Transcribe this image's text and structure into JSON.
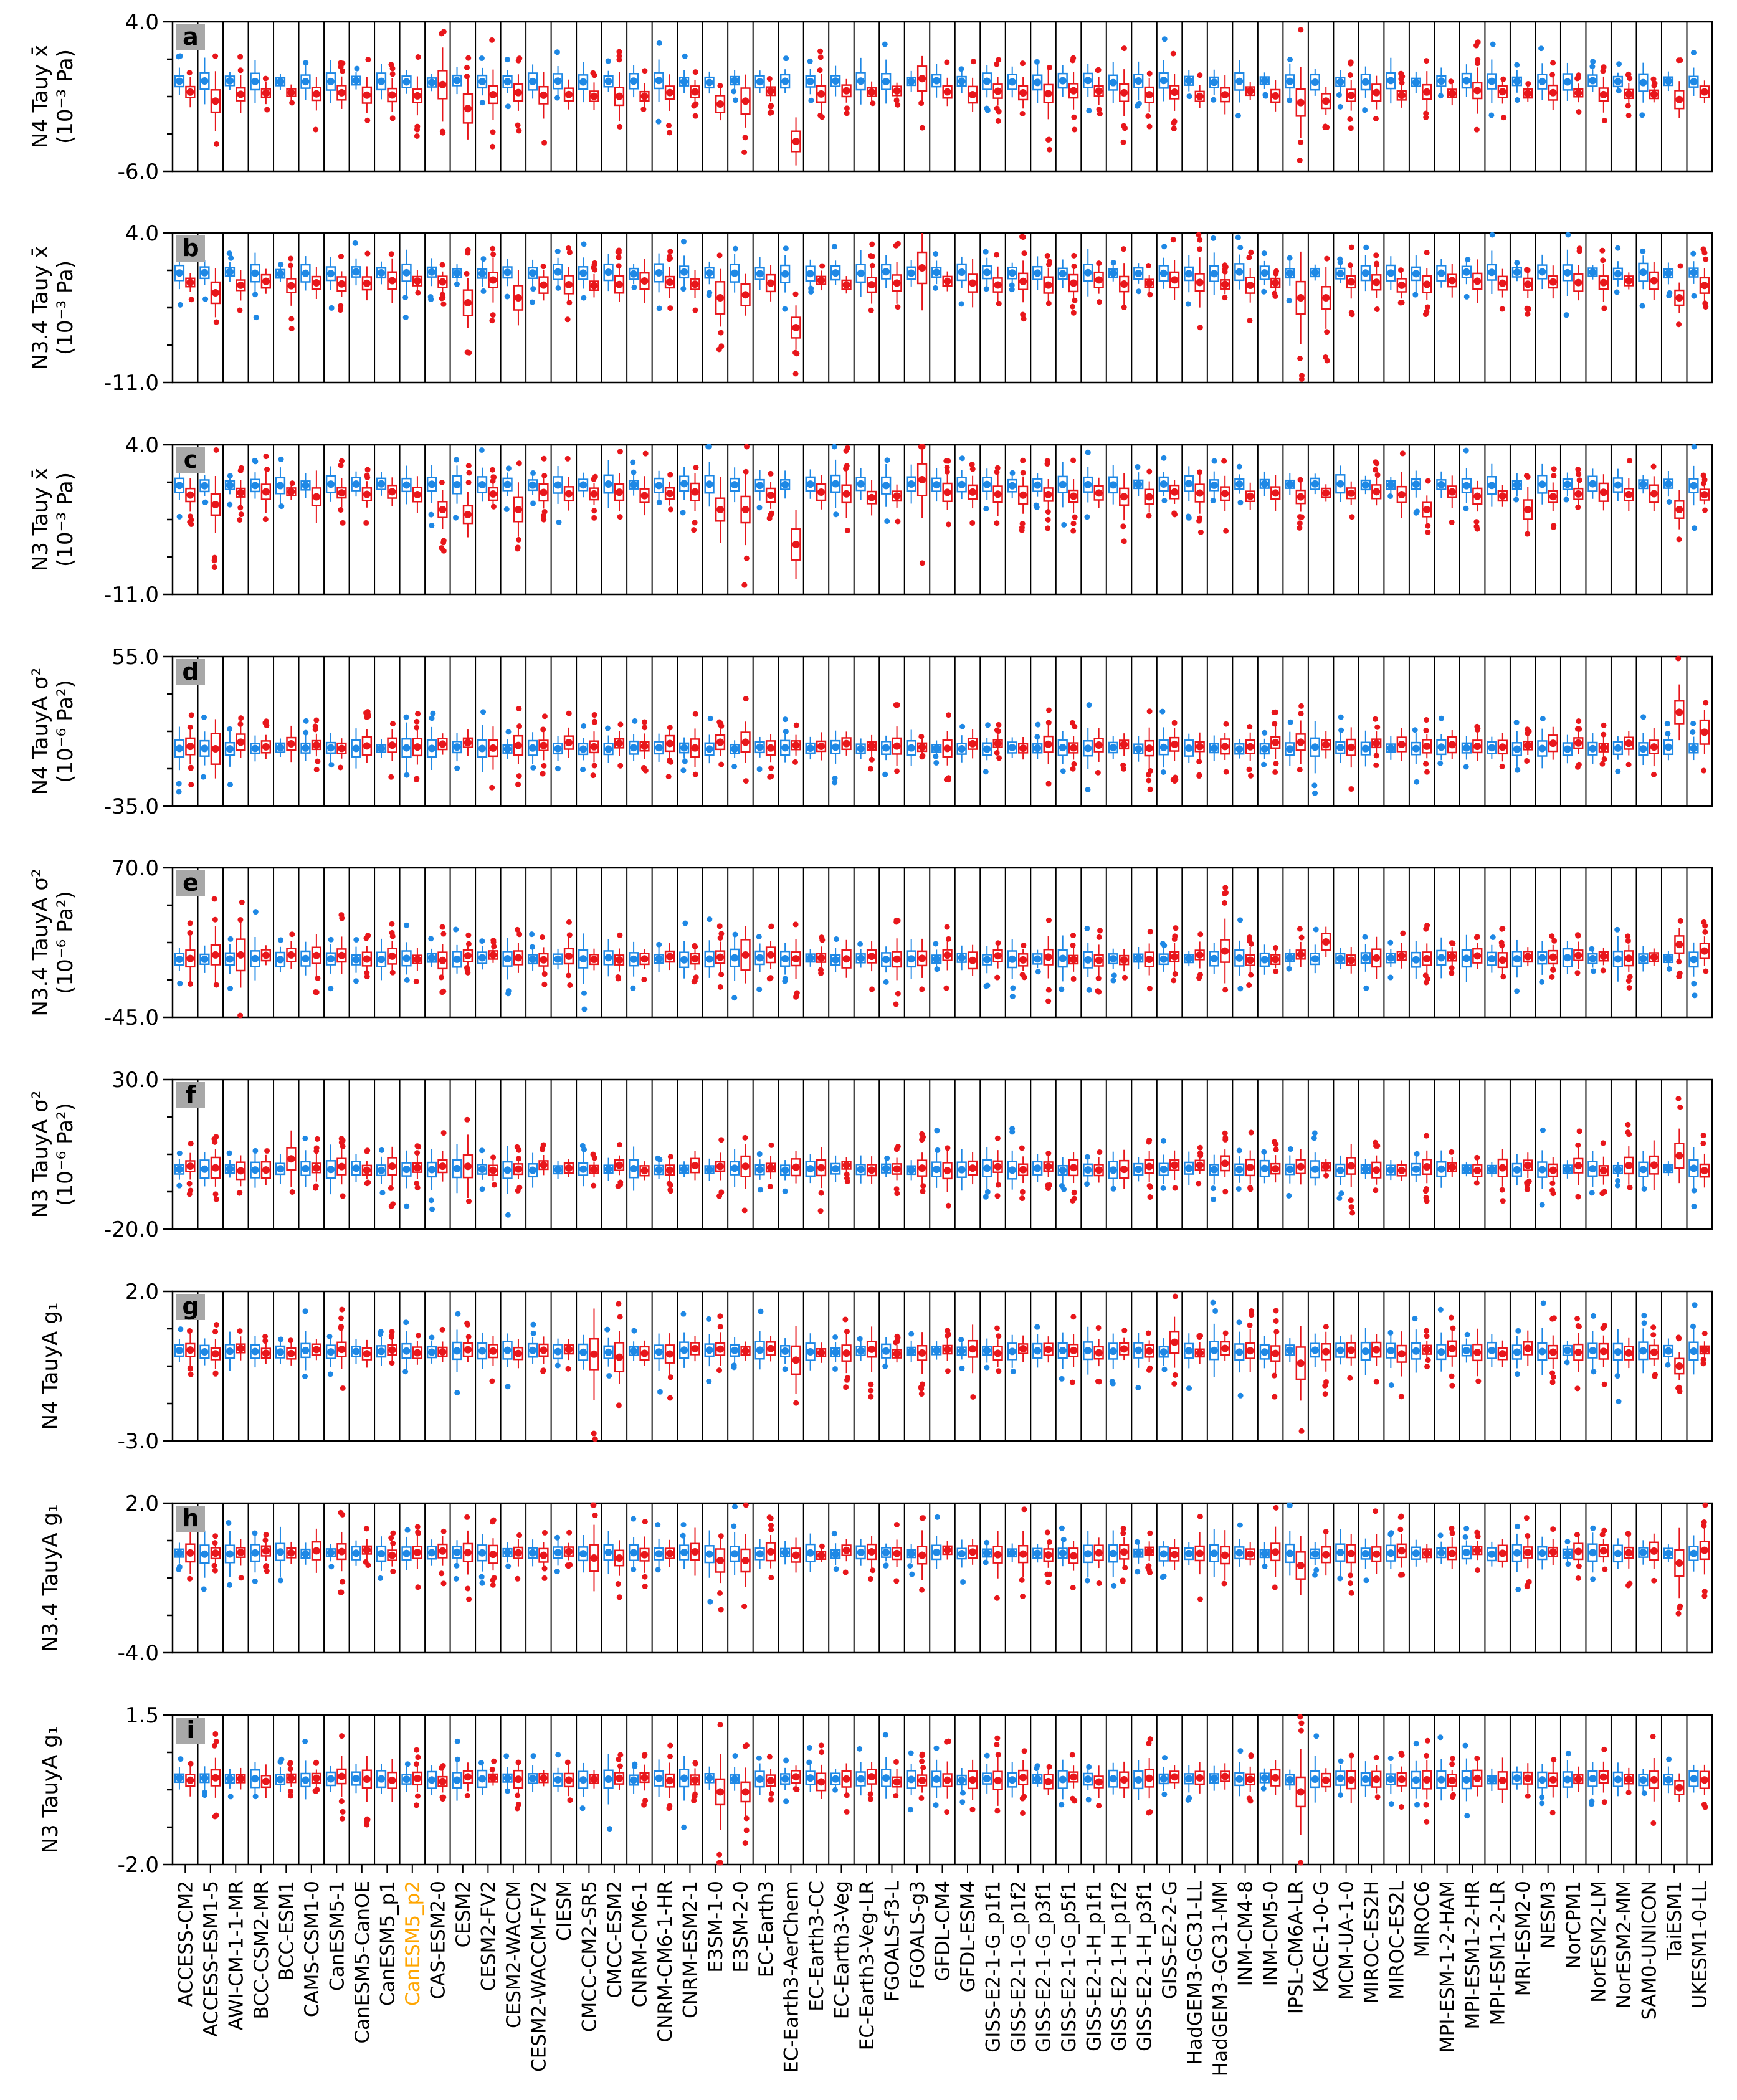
{
  "colors": {
    "blue": "#1e88e5",
    "red": "#e8161b",
    "highlight_model": "#ffa500",
    "panel_tag_bg": "#a8a8a8"
  },
  "highlight_index": 9,
  "models": [
    "ACCESS-CM2",
    "ACCESS-ESM1-5",
    "AWI-CM-1-1-MR",
    "BCC-CSM2-MR",
    "BCC-ESM1",
    "CAMS-CSM1-0",
    "CanESM5-1",
    "CanESM5-CanOE",
    "CanESM5_p1",
    "CanESM5_p2",
    "CAS-ESM2-0",
    "CESM2",
    "CESM2-FV2",
    "CESM2-WACCM",
    "CESM2-WACCM-FV2",
    "CIESM",
    "CMCC-CM2-SR5",
    "CMCC-ESM2",
    "CNRM-CM6-1",
    "CNRM-CM6-1-HR",
    "CNRM-ESM2-1",
    "E3SM-1-0",
    "E3SM-2-0",
    "EC-Earth3",
    "EC-Earth3-AerChem",
    "EC-Earth3-CC",
    "EC-Earth3-Veg",
    "EC-Earth3-Veg-LR",
    "FGOALS-f3-L",
    "FGOALS-g3",
    "GFDL-CM4",
    "GFDL-ESM4",
    "GISS-E2-1-G_p1f1",
    "GISS-E2-1-G_p1f2",
    "GISS-E2-1-G_p3f1",
    "GISS-E2-1-G_p5f1",
    "GISS-E2-1-H_p1f1",
    "GISS-E2-1-H_p1f2",
    "GISS-E2-1-H_p3f1",
    "GISS-E2-2-G",
    "HadGEM3-GC31-LL",
    "HadGEM3-GC31-MM",
    "INM-CM4-8",
    "INM-CM5-0",
    "IPSL-CM6A-LR",
    "KACE-1-0-G",
    "MCM-UA-1-0",
    "MIROC-ES2H",
    "MIROC-ES2L",
    "MIROC6",
    "MPI-ESM-1-2-HAM",
    "MPI-ESM1-2-HR",
    "MPI-ESM1-2-LR",
    "MRI-ESM2-0",
    "NESM3",
    "NorCPM1",
    "NorESM2-LM",
    "NorESM2-MM",
    "SAM0-UNICON",
    "TaiESM1",
    "UKESM1-0-LL"
  ],
  "chart_data": [
    {
      "type": "box",
      "panel": "a",
      "ylabel": "N4 Tauy x̄ (10⁻³ Pa)",
      "ylabel_line1": "N4 Tauy x̄",
      "ylabel_line2": "(10⁻³ Pa)",
      "ylim": [
        -6.0,
        4.0
      ],
      "tick_labels": [
        "4.0",
        "-6.0"
      ],
      "center_blue": 0.0,
      "center_red": -0.8,
      "red_offsets": {
        "1": -0.5,
        "10": 0.6,
        "11": -1.0,
        "21": -0.7,
        "22": -0.5,
        "24": -3.2,
        "29": 1.0,
        "44": -0.6,
        "45": -0.5,
        "59": -0.4
      }
    },
    {
      "type": "box",
      "panel": "b",
      "ylabel": "N3.4 Tauy x̄ (10⁻³ Pa)",
      "ylabel_line1": "N3.4 Tauy x̄",
      "ylabel_line2": "(10⁻³ Pa)",
      "ylim": [
        -11.0,
        4.0
      ],
      "tick_labels": [
        "4.0",
        "-11.0"
      ],
      "center_blue": 0.0,
      "center_red": -1.0,
      "red_offsets": {
        "1": -1.0,
        "11": -2.0,
        "13": -1.5,
        "21": -1.5,
        "22": -1.2,
        "24": -4.5,
        "29": 1.5,
        "44": -1.5,
        "45": -1.5,
        "59": -1.5
      }
    },
    {
      "type": "box",
      "panel": "c",
      "ylabel": "N3 Tauy x̄ (10⁻³ Pa)",
      "ylabel_line1": "N3 Tauy x̄",
      "ylabel_line2": "(10⁻³ Pa)",
      "ylim": [
        -11.0,
        4.0
      ],
      "tick_labels": [
        "4.0",
        "-11.0"
      ],
      "center_blue": 0.0,
      "center_red": -1.0,
      "red_offsets": {
        "1": -1.0,
        "10": -1.5,
        "11": -2.0,
        "13": -1.5,
        "21": -1.5,
        "22": -1.5,
        "24": -5.0,
        "29": 1.5,
        "49": -1.5,
        "53": -1.5,
        "59": -1.5
      }
    },
    {
      "type": "box",
      "panel": "d",
      "ylabel": "N4 TauyA σ² (10⁻⁶ Pa²)",
      "ylabel_line1": "N4 TauyA σ²",
      "ylabel_line2": "(10⁻⁶ Pa²)",
      "ylim": [
        -35.0,
        55.0
      ],
      "tick_labels": [
        "55.0",
        "-35.0"
      ],
      "center_blue": 0.0,
      "center_red": 1.5,
      "red_offsets": {
        "1": -2.0,
        "2": 2.0,
        "13": 0.0,
        "21": 2.0,
        "22": 2.0,
        "44": 2.0,
        "59": 20.0,
        "60": 8.0
      }
    },
    {
      "type": "box",
      "panel": "e",
      "ylabel": "N3.4 TauyA σ² (10⁻⁶ Pa²)",
      "ylabel_line1": "N3.4 TauyA σ²",
      "ylabel_line2": "(10⁻⁶ Pa²)",
      "ylim": [
        -45.0,
        70.0
      ],
      "tick_labels": [
        "70.0",
        "-45.0"
      ],
      "center_blue": 0.0,
      "center_red": 1.0,
      "red_offsets": {
        "1": 2.0,
        "2": 2.0,
        "22": 2.0,
        "41": 5.0,
        "45": 12.0,
        "59": 10.0,
        "60": 5.0
      }
    },
    {
      "type": "box",
      "panel": "f",
      "ylabel": "N3 TauyA σ² (10⁻⁶ Pa²)",
      "ylabel_line1": "N3 TauyA σ²",
      "ylabel_line2": "(10⁻⁶ Pa²)",
      "ylim": [
        -20.0,
        30.0
      ],
      "tick_labels": [
        "30.0",
        "-20.0"
      ],
      "center_blue": 0.0,
      "center_red": 0.5,
      "red_offsets": {
        "1": 0.0,
        "2": -1.0,
        "4": 3.0,
        "11": 0.5,
        "22": 0.5,
        "41": 1.5,
        "59": 4.0
      }
    },
    {
      "type": "box",
      "panel": "g",
      "ylabel": "N4 TauyA g₁",
      "ylabel_line1": "N4 TauyA g₁",
      "ylabel_line2": "",
      "ylim": [
        -3.0,
        2.0
      ],
      "tick_labels": [
        "2.0",
        "-3.0"
      ],
      "center_blue": 0.0,
      "center_red": 0.0,
      "red_offsets": {
        "16": -0.1,
        "17": -0.2,
        "24": -0.3,
        "44": -0.4,
        "59": -0.5,
        "39": 0.3
      }
    },
    {
      "type": "box",
      "panel": "h",
      "ylabel": "N3.4 TauyA g₁",
      "ylabel_line1": "N3.4 TauyA g₁",
      "ylabel_line2": "",
      "ylim": [
        -4.0,
        2.0
      ],
      "tick_labels": [
        "2.0",
        "-4.0"
      ],
      "center_blue": 0.0,
      "center_red": 0.0,
      "red_offsets": {
        "16": -0.2,
        "17": -0.2,
        "21": -0.3,
        "22": -0.3,
        "44": -0.5,
        "59": -0.4
      }
    },
    {
      "type": "box",
      "panel": "i",
      "ylabel": "N3 TauyA g₁",
      "ylabel_line1": "N3 TauyA g₁",
      "ylabel_line2": "",
      "ylim": [
        -2.0,
        1.5
      ],
      "tick_labels": [
        "1.5",
        "-2.0"
      ],
      "center_blue": 0.0,
      "center_red": 0.0,
      "red_offsets": {
        "21": -0.3,
        "22": -0.3,
        "44": -0.3,
        "59": -0.2
      }
    }
  ]
}
